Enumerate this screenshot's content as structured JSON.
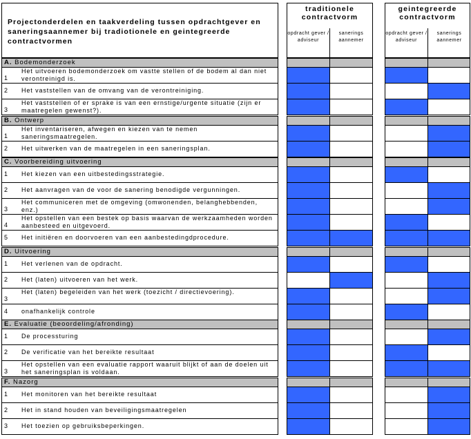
{
  "title": "Projectonderdelen en taakverdeling tussen opdrachtgever en saneringsaannemer bij tradiotionele en geintegreerde contractvormen",
  "groups": [
    {
      "title": "traditionele contractvorm",
      "col1": "opdracht gever / adviseur",
      "col2": "sanerings aannemer"
    },
    {
      "title": "geintegreerde contractvorm",
      "col1": "opdracht gever / adviseur",
      "col2": "sanerings aannemer"
    }
  ],
  "fill_color": "#3366ff",
  "sections": [
    {
      "letter": "A.",
      "title": "Bodemonderzoek",
      "items": [
        {
          "num": "1",
          "text": "Het uitvoeren bodemonderzoek om vastte stellen of de bodem al dan niet verontreinigd is.",
          "marks": [
            1,
            0,
            1,
            0
          ]
        },
        {
          "num": "2",
          "text": "Het vaststellen van de omvang van de verontreiniging.",
          "marks": [
            1,
            0,
            0,
            1
          ]
        },
        {
          "num": "3",
          "text": "Het vaststellen of er sprake is van een ernstige/urgente situatie (zijn er maatregelen gewenst?).",
          "marks": [
            1,
            0,
            1,
            0
          ]
        }
      ]
    },
    {
      "letter": "B.",
      "title": "Ontwerp",
      "items": [
        {
          "num": "1",
          "text": "Het inventariseren, afwegen en kiezen van te nemen saneringsmaatregelen.",
          "marks": [
            1,
            0,
            0,
            1
          ]
        },
        {
          "num": "2",
          "text": "Het uitwerken van de maatregelen in een saneringsplan.",
          "marks": [
            1,
            0,
            0,
            1
          ]
        }
      ]
    },
    {
      "letter": "C.",
      "title": "Voorbereiding uitvoering",
      "items": [
        {
          "num": "1",
          "text": "Het kiezen van een uitbestedingsstrategie.",
          "marks": [
            1,
            0,
            1,
            0
          ]
        },
        {
          "num": "2",
          "text": "Het aanvragen van de voor de sanering benodigde vergunningen.",
          "marks": [
            1,
            0,
            0,
            1
          ]
        },
        {
          "num": "3",
          "text": "Het communiceren met de omgeving (omwonenden, belanghebbenden, enz.)",
          "marks": [
            1,
            0,
            0,
            1
          ]
        },
        {
          "num": "4",
          "text": "Het opstellen van een bestek op basis waarvan de werkzaamheden worden aanbesteed en uitgevoerd.",
          "marks": [
            1,
            0,
            1,
            0
          ]
        },
        {
          "num": "5",
          "text": "Het initiëren en doorvoeren van een aanbestedingdprocedure.",
          "marks": [
            1,
            1,
            1,
            1
          ]
        }
      ]
    },
    {
      "letter": "D.",
      "title": "Uitvoering",
      "items": [
        {
          "num": "1",
          "text": "Het verlenen van de opdracht.",
          "marks": [
            1,
            0,
            1,
            0
          ]
        },
        {
          "num": "2",
          "text": "Het (laten) uitvoeren van het werk.",
          "marks": [
            0,
            1,
            0,
            1
          ]
        },
        {
          "num": "3",
          "text": "Het (laten) begeleiden van het werk (toezicht / directievoering).",
          "marks": [
            1,
            0,
            0,
            1
          ]
        },
        {
          "num": "4",
          "text": "onafhankelijk controle",
          "marks": [
            1,
            0,
            1,
            0
          ]
        }
      ]
    },
    {
      "letter": "E.",
      "title": "Evaluatie (beoordeling/afronding)",
      "items": [
        {
          "num": "1",
          "text": "De processturing",
          "marks": [
            1,
            0,
            0,
            1
          ]
        },
        {
          "num": "2",
          "text": "De verificatie van het bereikte resultaat",
          "marks": [
            1,
            0,
            1,
            0
          ]
        },
        {
          "num": "3",
          "text": "Het opstellen van een evaluatie rapport waaruit blijkt of aan de doelen uit het saneringsplan is voldaan.",
          "marks": [
            1,
            0,
            1,
            1
          ]
        }
      ]
    },
    {
      "letter": "F.",
      "title": "Nazorg",
      "items": [
        {
          "num": "1",
          "text": "Het monitoren van het bereikte resultaat",
          "marks": [
            1,
            0,
            0,
            1
          ]
        },
        {
          "num": "2",
          "text": "Het in stand houden van beveiligingsmaatregelen",
          "marks": [
            1,
            0,
            0,
            1
          ]
        },
        {
          "num": "3",
          "text": "Het toezien op gebruiksbeperkingen.",
          "marks": [
            1,
            0,
            0,
            1
          ]
        }
      ]
    }
  ]
}
